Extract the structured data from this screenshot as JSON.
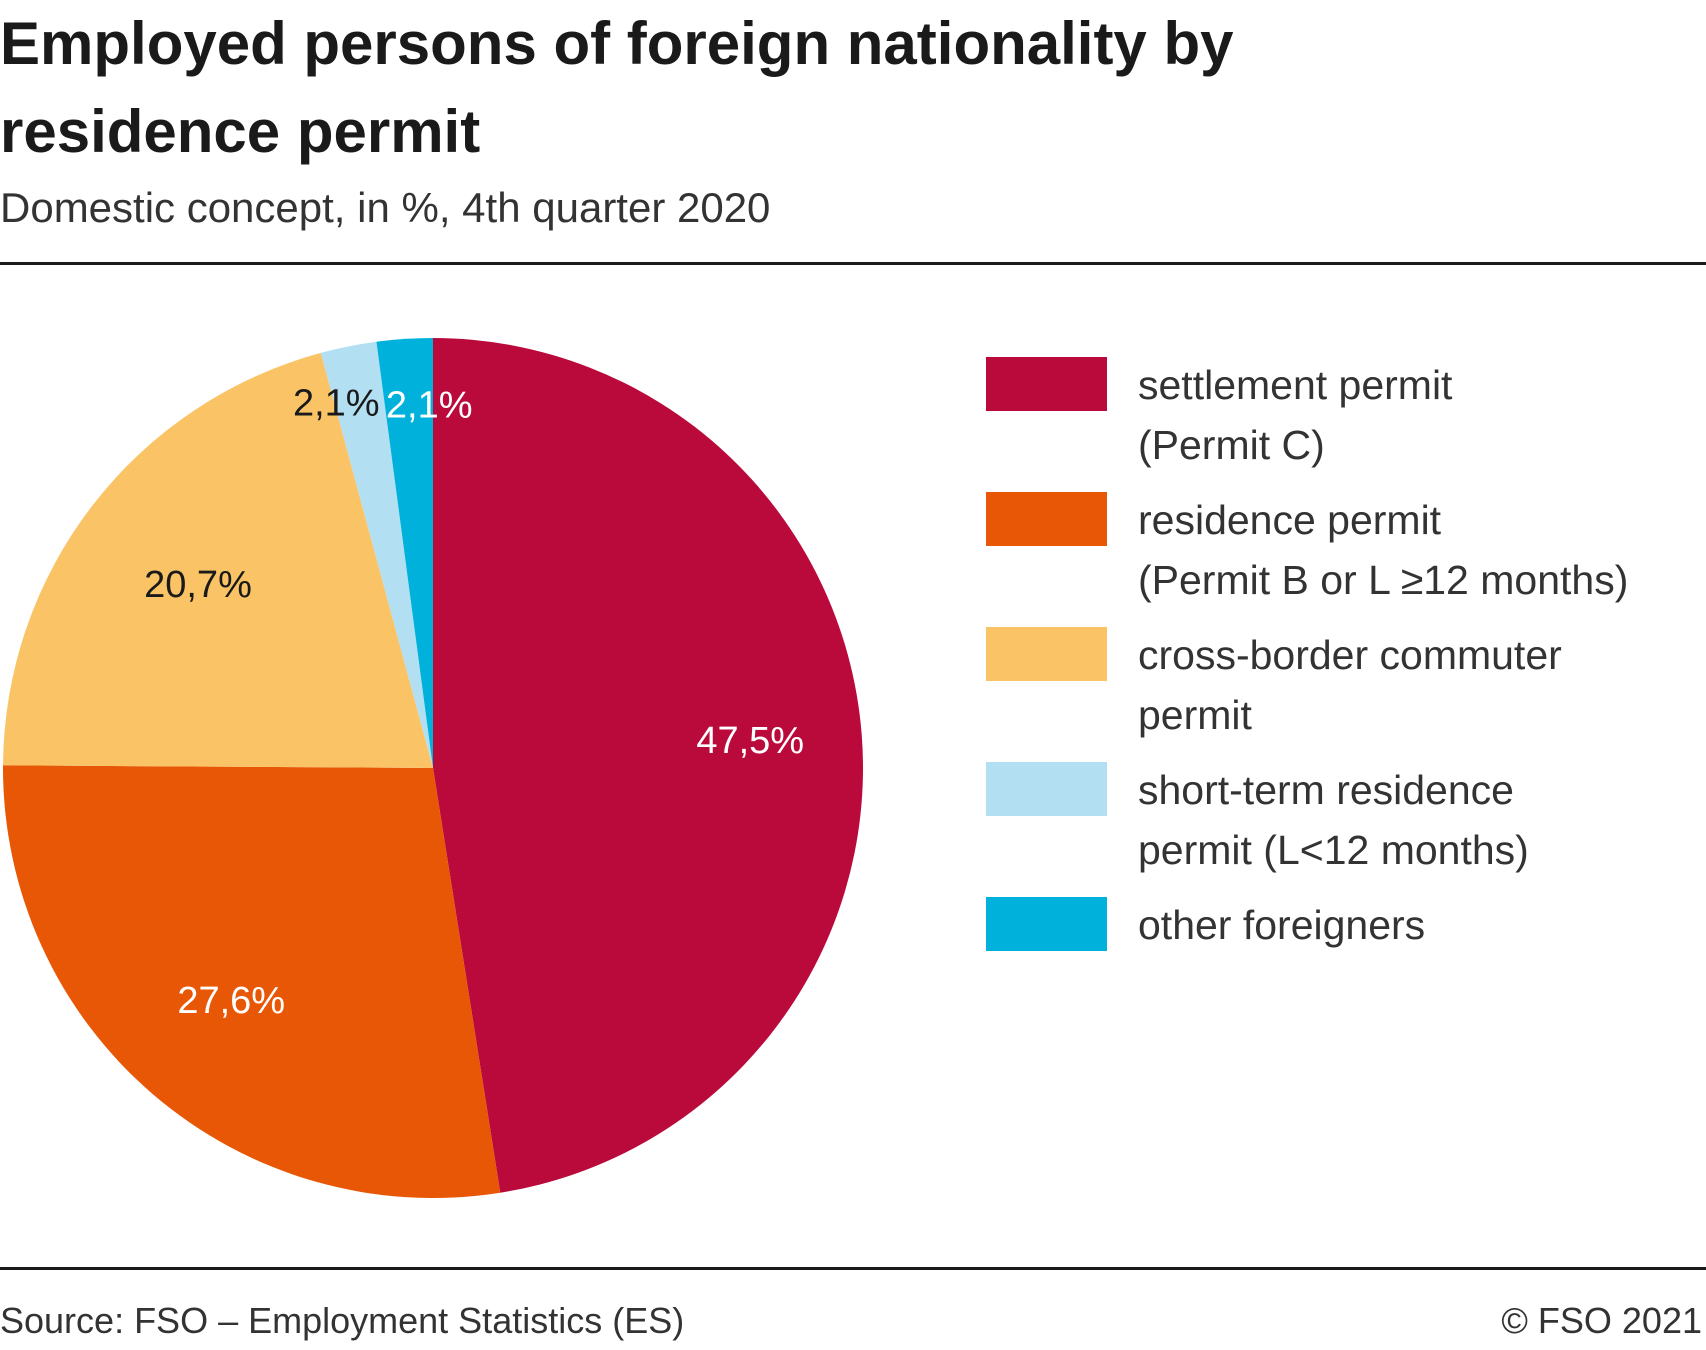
{
  "header": {
    "title": "Employed persons of foreign nationality by residence permit",
    "subtitle": "Domestic concept, in %, 4th quarter 2020"
  },
  "footer": {
    "source": "Source: FSO – Employment Statistics (ES)",
    "copyright": "© FSO 2021"
  },
  "chart_data": {
    "type": "pie",
    "title": "Employed persons of foreign nationality by residence permit",
    "subtitle": "Domestic concept, in %, 4th quarter 2020",
    "unit": "%",
    "legend_position": "right",
    "start": "top, clockwise",
    "slices": [
      {
        "name": "settlement permit\n(Permit C)",
        "value": 47.5,
        "label": "47,5%",
        "color": "#BA0A3C",
        "label_color": "#ffffff"
      },
      {
        "name": "residence permit\n(Permit B or L ≥12 months)",
        "value": 27.6,
        "label": "27,6%",
        "color": "#E85705",
        "label_color": "#ffffff"
      },
      {
        "name": "cross-border commuter\npermit",
        "value": 20.7,
        "label": "20,7%",
        "color": "#FAC466",
        "label_color": "#1a1a1a"
      },
      {
        "name": "short-term residence\npermit (L<12 months)",
        "value": 2.1,
        "label": "2,1%",
        "color": "#B3DFF3",
        "label_color": "#1a1a1a"
      },
      {
        "name": "other foreigners",
        "value": 2.1,
        "label": "2,1%",
        "color": "#00B2DB",
        "label_color": "#ffffff"
      }
    ]
  }
}
